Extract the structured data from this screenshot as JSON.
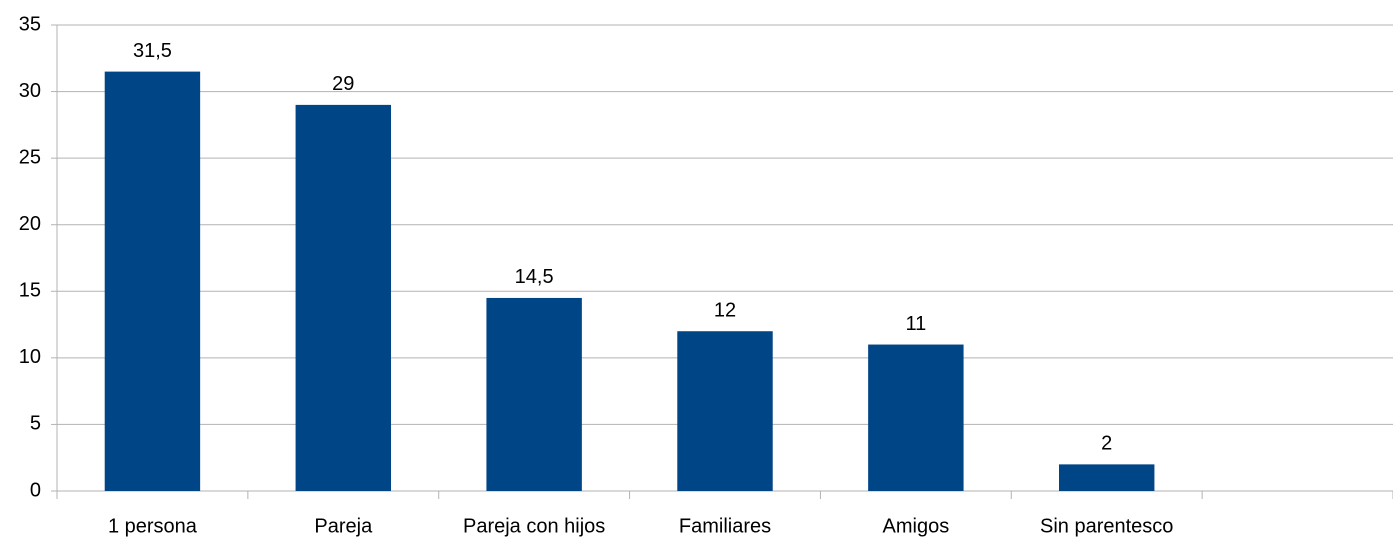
{
  "chart_data": {
    "type": "bar",
    "categories": [
      "1 persona",
      "Pareja",
      "Pareja con hijos",
      "Familiares",
      "Amigos",
      "Sin parentesco",
      null
    ],
    "values": [
      31.5,
      29,
      14.5,
      12,
      11,
      2,
      null
    ],
    "value_labels": [
      "31,5",
      "29",
      "14,5",
      "12",
      "11",
      "2",
      null
    ],
    "color": "#004586",
    "ylim": [
      0,
      35
    ],
    "yticks": [
      0,
      5,
      10,
      15,
      20,
      25,
      30,
      35
    ],
    "grid": true
  }
}
